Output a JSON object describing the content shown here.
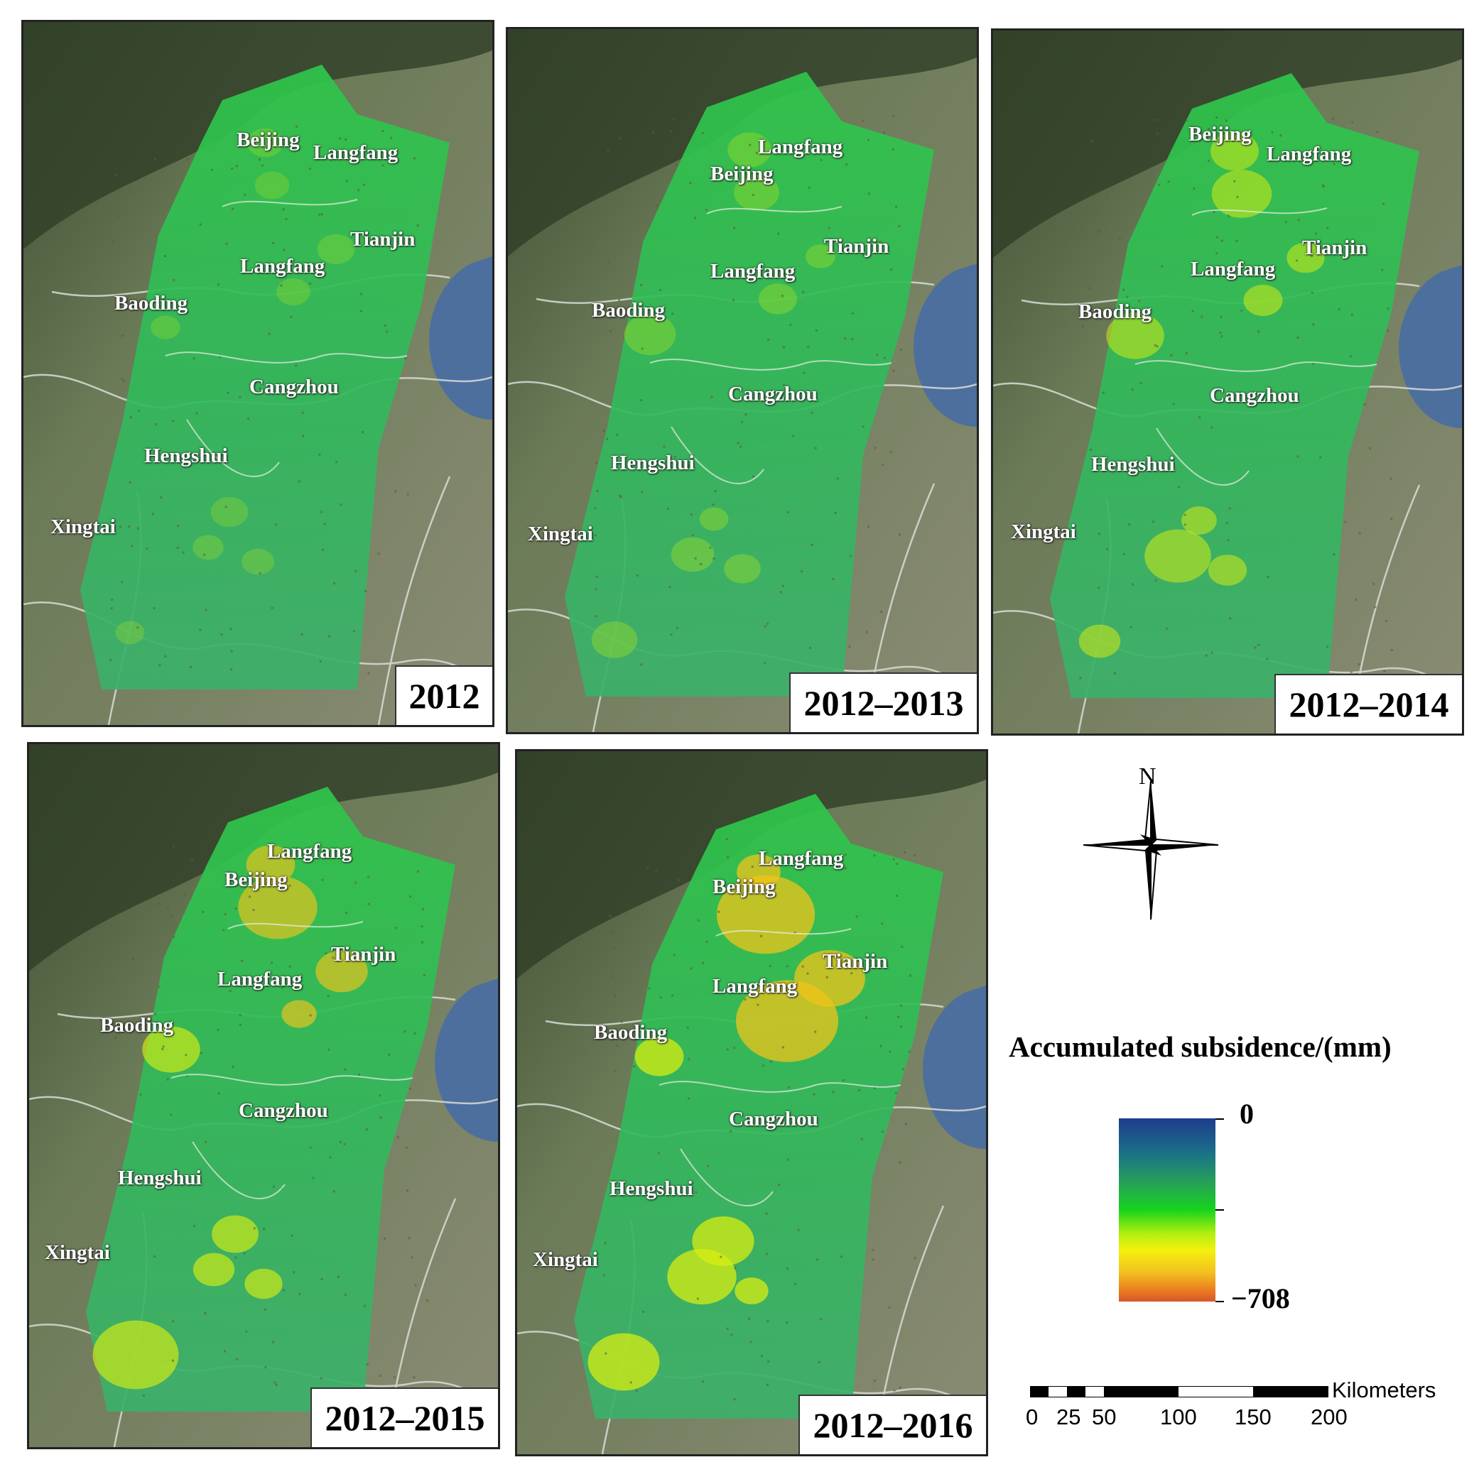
{
  "panels": [
    {
      "period": "2012",
      "labels": [
        "Beijing",
        "Langfang",
        "Tianjin",
        "Langfang",
        "Baoding",
        "Cangzhou",
        "Hengshui",
        "Xingtai"
      ],
      "subsidence_level": 0.12
    },
    {
      "period": "2012–2013",
      "labels": [
        "Langfang",
        "Beijing",
        "Tianjin",
        "Langfang",
        "Baoding",
        "Cangzhou",
        "Hengshui",
        "Xingtai"
      ],
      "subsidence_level": 0.3
    },
    {
      "period": "2012–2014",
      "labels": [
        "Beijing",
        "Langfang",
        "Tianjin",
        "Langfang",
        "Baoding",
        "Cangzhou",
        "Hengshui",
        "Xingtai"
      ],
      "subsidence_level": 0.5
    },
    {
      "period": "2012–2015",
      "labels": [
        "Langfang",
        "Beijing",
        "Tianjin",
        "Langfang",
        "Baoding",
        "Cangzhou",
        "Hengshui",
        "Xingtai"
      ],
      "subsidence_level": 0.72
    },
    {
      "period": "2012–2016",
      "labels": [
        "Langfang",
        "Beijing",
        "Tianjin",
        "Langfang",
        "Baoding",
        "Cangzhou",
        "Hengshui",
        "Xingtai"
      ],
      "subsidence_level": 0.9
    }
  ],
  "north_arrow": {
    "label": "N",
    "icon": "north-arrow-icon"
  },
  "legend": {
    "title": "Accumulated subsidence/(mm)",
    "max_label": "0",
    "min_label": "−708",
    "colors": [
      "#1f3c8c",
      "#1a6e8a",
      "#27a05a",
      "#17d31c",
      "#b2ef10",
      "#f4f00d",
      "#f3c120",
      "#e97421",
      "#d4582a"
    ]
  },
  "scale_bar": {
    "unit": "Kilometers",
    "ticks": [
      "0",
      "25",
      "50",
      "100",
      "150",
      "200"
    ]
  }
}
